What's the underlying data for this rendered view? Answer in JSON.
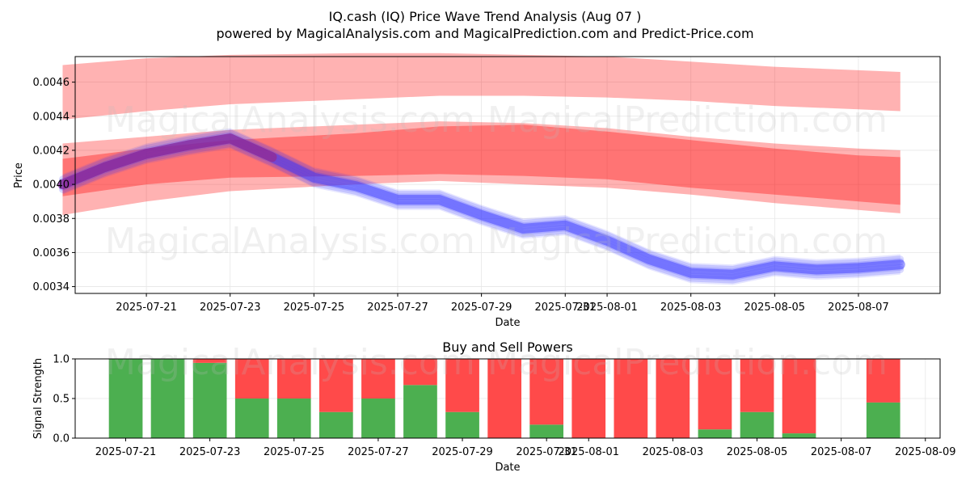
{
  "title": "IQ.cash (IQ) Price Wave Trend Analysis (Aug 07 )",
  "subtitle": "powered by MagicalAnalysis.com and MagicalPrediction.com and Predict-Price.com",
  "watermarks": [
    "MagicalAnalysis.com",
    "MagicalPrediction.com"
  ],
  "colors": {
    "band": "#ff0000",
    "wave_blue": "#3333ff",
    "wave_purple": "#a0207a",
    "buy": "#4caf50",
    "sell": "#ff4a4a"
  },
  "chart_data": [
    {
      "type": "area",
      "title": "",
      "xlabel": "Date",
      "ylabel": "Price",
      "x_ticks": [
        "2025-07-21",
        "2025-07-23",
        "2025-07-25",
        "2025-07-27",
        "2025-07-29",
        "2025-07-31",
        "2025-08-01",
        "2025-08-03",
        "2025-08-05",
        "2025-08-07"
      ],
      "y_ticks": [
        "0.0034",
        "0.0036",
        "0.0038",
        "0.0040",
        "0.0042",
        "0.0044",
        "0.0046"
      ],
      "ylim": [
        0.00336,
        0.00475
      ],
      "xlim": [
        "2025-07-19",
        "2025-08-09"
      ],
      "grid": true,
      "bands": [
        {
          "x": [
            "2025-07-19",
            "2025-07-21",
            "2025-07-23",
            "2025-07-26",
            "2025-07-28",
            "2025-07-30",
            "2025-08-01",
            "2025-08-03",
            "2025-08-05",
            "2025-08-07",
            "2025-08-08"
          ],
          "upper": [
            0.0047,
            0.00474,
            0.00476,
            0.00477,
            0.00477,
            0.00476,
            0.00475,
            0.00472,
            0.00469,
            0.00467,
            0.00466
          ],
          "lower": [
            0.00438,
            0.00443,
            0.00447,
            0.0045,
            0.00452,
            0.00452,
            0.00451,
            0.00449,
            0.00446,
            0.00444,
            0.00443
          ],
          "opacity": 0.3
        },
        {
          "x": [
            "2025-07-19",
            "2025-07-21",
            "2025-07-23",
            "2025-07-26",
            "2025-07-28",
            "2025-07-30",
            "2025-08-01",
            "2025-08-03",
            "2025-08-05",
            "2025-08-07",
            "2025-08-08"
          ],
          "upper": [
            0.00424,
            0.00428,
            0.00432,
            0.00435,
            0.00437,
            0.00436,
            0.00433,
            0.00428,
            0.00424,
            0.00421,
            0.0042
          ],
          "lower": [
            0.00382,
            0.0039,
            0.00396,
            0.004,
            0.00402,
            0.004,
            0.00398,
            0.00394,
            0.00389,
            0.00385,
            0.00383
          ],
          "opacity": 0.3
        },
        {
          "x": [
            "2025-07-19",
            "2025-07-21",
            "2025-07-23",
            "2025-07-26",
            "2025-07-28",
            "2025-07-30",
            "2025-08-01",
            "2025-08-03",
            "2025-08-05",
            "2025-08-07",
            "2025-08-08"
          ],
          "upper": [
            0.00415,
            0.00421,
            0.00426,
            0.0043,
            0.00434,
            0.00435,
            0.00431,
            0.00426,
            0.00421,
            0.00417,
            0.00416
          ],
          "lower": [
            0.00393,
            0.004,
            0.00404,
            0.00405,
            0.00406,
            0.00405,
            0.00403,
            0.00398,
            0.00394,
            0.0039,
            0.00388
          ],
          "opacity": 0.35
        }
      ],
      "wave": {
        "x": [
          "2025-07-19",
          "2025-07-20",
          "2025-07-21",
          "2025-07-22",
          "2025-07-23",
          "2025-07-24",
          "2025-07-25",
          "2025-07-26",
          "2025-07-27",
          "2025-07-28",
          "2025-07-29",
          "2025-07-30",
          "2025-07-31",
          "2025-08-01",
          "2025-08-02",
          "2025-08-03",
          "2025-08-04",
          "2025-08-05",
          "2025-08-06",
          "2025-08-07",
          "2025-08-08"
        ],
        "y": [
          0.004,
          0.0041,
          0.00418,
          0.00423,
          0.00427,
          0.00416,
          0.00404,
          0.00399,
          0.00391,
          0.00391,
          0.00382,
          0.00374,
          0.00376,
          0.00367,
          0.00356,
          0.00348,
          0.00347,
          0.00352,
          0.0035,
          0.00351,
          0.00353
        ],
        "spread": 6e-05
      }
    },
    {
      "type": "bar",
      "title": "Buy and Sell Powers",
      "xlabel": "Date",
      "ylabel": "Signal Strength",
      "ylim": [
        0,
        1
      ],
      "x_ticks": [
        "2025-07-21",
        "2025-07-23",
        "2025-07-25",
        "2025-07-27",
        "2025-07-29",
        "2025-07-31",
        "2025-08-01",
        "2025-08-03",
        "2025-08-05",
        "2025-08-07",
        "2025-08-09"
      ],
      "y_ticks": [
        "0.0",
        "0.5",
        "1.0"
      ],
      "grid": true,
      "categories": [
        "2025-07-21",
        "2025-07-22",
        "2025-07-23",
        "2025-07-24",
        "2025-07-25",
        "2025-07-26",
        "2025-07-27",
        "2025-07-28",
        "2025-07-29",
        "2025-07-30",
        "2025-07-31",
        "2025-08-01",
        "2025-08-02",
        "2025-08-03",
        "2025-08-04",
        "2025-08-05",
        "2025-08-06",
        "2025-08-08"
      ],
      "series": [
        {
          "name": "Buy",
          "values": [
            1.0,
            1.0,
            0.95,
            0.5,
            0.5,
            0.33,
            0.5,
            0.67,
            0.33,
            0.0,
            0.17,
            0.0,
            0.0,
            0.0,
            0.11,
            0.33,
            0.06,
            0.45
          ]
        },
        {
          "name": "Sell",
          "values": [
            0.0,
            0.0,
            0.05,
            0.5,
            0.5,
            0.67,
            0.5,
            0.33,
            0.67,
            1.0,
            0.83,
            1.0,
            1.0,
            1.0,
            0.89,
            0.67,
            0.94,
            0.55
          ]
        }
      ]
    }
  ]
}
